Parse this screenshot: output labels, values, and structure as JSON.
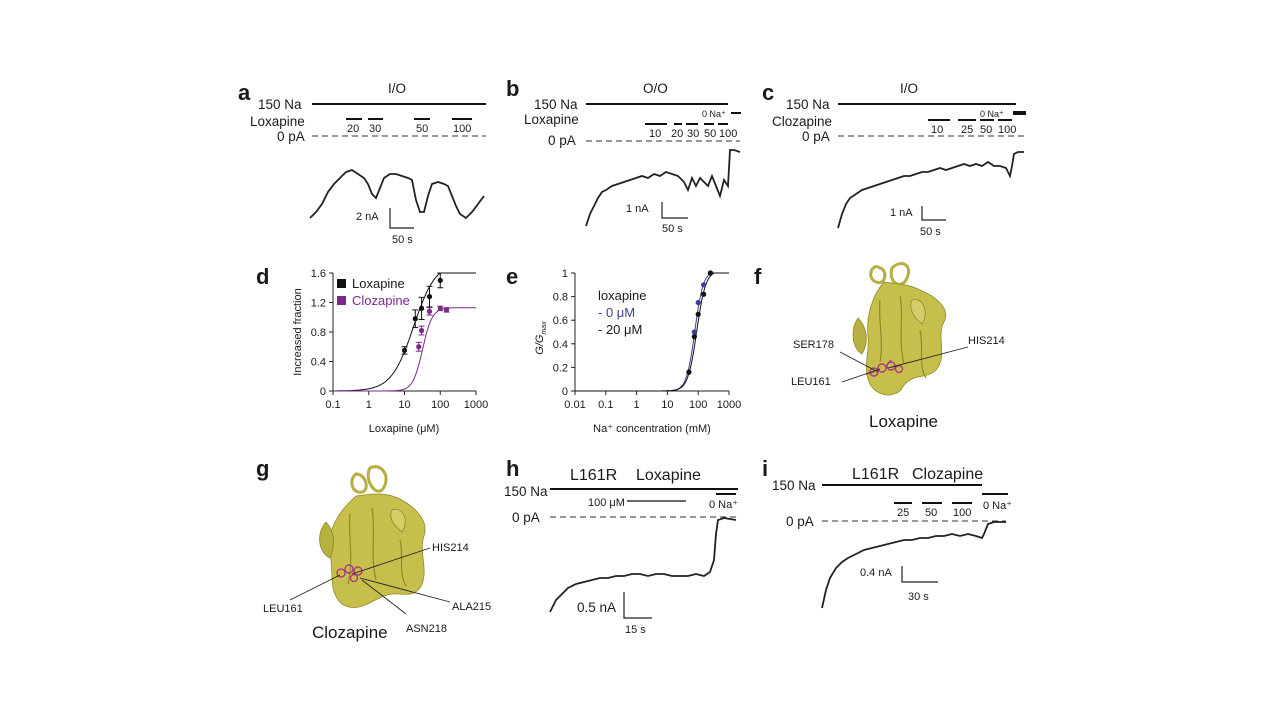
{
  "panels": {
    "a": {
      "letter": "a",
      "condition": "I/O",
      "na_label": "150 Na",
      "drug": "Loxapine",
      "zero": "0 pA",
      "concs": [
        "20",
        "30",
        "50",
        "100"
      ],
      "scale_y": "2 nA",
      "scale_x": "50 s"
    },
    "b": {
      "letter": "b",
      "condition": "O/O",
      "na_label": "150 Na",
      "drug": "Loxapine",
      "zero": "0 pA",
      "zero_na": "0 Na⁺",
      "concs": [
        "10",
        "20",
        "30",
        "50",
        "100"
      ],
      "scale_y": "1 nA",
      "scale_x": "50 s"
    },
    "c": {
      "letter": "c",
      "condition": "I/O",
      "na_label": "150 Na",
      "drug": "Clozapine",
      "zero": "0 pA",
      "zero_na": "0 Na⁺",
      "concs": [
        "10",
        "25",
        "50",
        "100"
      ],
      "scale_y": "1 nA",
      "scale_x": "50 s"
    },
    "d": {
      "letter": "d"
    },
    "e": {
      "letter": "e"
    },
    "f": {
      "letter": "f",
      "name": "Loxapine",
      "residues": [
        "SER178",
        "HIS214",
        "LEU161"
      ]
    },
    "g": {
      "letter": "g",
      "name": "Clozapine",
      "residues": [
        "HIS214",
        "LEU161",
        "ALA215",
        "ASN218"
      ]
    },
    "h": {
      "letter": "h",
      "mutant": "L161R",
      "drug": "Loxapine",
      "na_label": "150 Na",
      "zero": "0 pA",
      "conc": "100 μM",
      "zero_na": "0 Na⁺",
      "scale_y": "0.5 nA",
      "scale_x": "15 s"
    },
    "i": {
      "letter": "i",
      "mutant": "L161R",
      "drug": "Clozapine",
      "na_label": "150 Na",
      "zero": "0 pA",
      "concs": [
        "25",
        "50",
        "100"
      ],
      "zero_na": "0 Na⁺",
      "scale_y": "0.4 nA",
      "scale_x": "30 s"
    }
  },
  "chart_data": [
    {
      "panel": "d",
      "type": "scatter",
      "xscale": "log",
      "xlim": [
        0.1,
        1000
      ],
      "ylim": [
        0,
        1.6
      ],
      "xticks": [
        "0.1",
        "1",
        "10",
        "100",
        "1000"
      ],
      "yticks": [
        "0",
        "0.4",
        "0.8",
        "1.2",
        "1.6"
      ],
      "xlabel": "Loxapine (μM)",
      "ylabel": "Increased fraction",
      "legend": "top-left",
      "series": [
        {
          "name": "Loxapine",
          "color": "#111111",
          "x": [
            10,
            20,
            30,
            50,
            100
          ],
          "y": [
            0.55,
            0.98,
            1.12,
            1.28,
            1.5
          ],
          "err": [
            0.05,
            0.12,
            0.15,
            0.14,
            0.1
          ]
        },
        {
          "name": "Clozapine",
          "color": "#7b2a8c",
          "x": [
            25,
            30,
            50,
            100,
            150
          ],
          "y": [
            0.6,
            0.82,
            1.08,
            1.12,
            1.1
          ],
          "err": [
            0.06,
            0.06,
            0.05,
            0.03,
            0.03
          ]
        }
      ]
    },
    {
      "panel": "e",
      "type": "scatter",
      "xscale": "log",
      "xlim": [
        0.01,
        1000
      ],
      "ylim": [
        0,
        1
      ],
      "xticks": [
        "0.01",
        "0.1",
        "1",
        "10",
        "100",
        "1000"
      ],
      "yticks": [
        "0",
        "0.2",
        "0.4",
        "0.6",
        "0.8",
        "1"
      ],
      "xlabel": "Na⁺ concentration (mM)",
      "ylabel": "G/G",
      "ylabel_sub": "max",
      "legend_title": "loxapine",
      "legend": "top-left",
      "series": [
        {
          "name": "0 μM",
          "color": "#3b3f9a",
          "x": [
            50,
            75,
            100,
            150,
            250
          ],
          "y": [
            0.16,
            0.5,
            0.75,
            0.9,
            1.0
          ]
        },
        {
          "name": "20 μM",
          "color": "#111111",
          "x": [
            50,
            75,
            100,
            150,
            250
          ],
          "y": [
            0.16,
            0.46,
            0.65,
            0.82,
            1.0
          ]
        }
      ]
    }
  ]
}
